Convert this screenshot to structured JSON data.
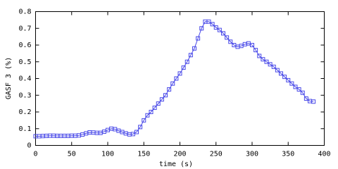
{
  "chart_data": {
    "type": "line",
    "xlabel": "time (s)",
    "ylabel": "GASF 3 (%)",
    "x": [
      0,
      5,
      10,
      15,
      20,
      25,
      30,
      35,
      40,
      45,
      50,
      55,
      60,
      65,
      70,
      75,
      80,
      85,
      90,
      95,
      100,
      105,
      110,
      115,
      120,
      125,
      130,
      135,
      140,
      145,
      150,
      155,
      160,
      165,
      170,
      175,
      180,
      185,
      190,
      195,
      200,
      205,
      210,
      215,
      220,
      225,
      230,
      235,
      240,
      245,
      250,
      255,
      260,
      265,
      270,
      275,
      280,
      285,
      290,
      295,
      300,
      305,
      310,
      315,
      320,
      325,
      330,
      335,
      340,
      345,
      350,
      355,
      360,
      365,
      370,
      375,
      380,
      385
    ],
    "series": [
      {
        "color": "#4848e8",
        "values": [
          0.055,
          0.055,
          0.056,
          0.057,
          0.058,
          0.058,
          0.057,
          0.057,
          0.057,
          0.057,
          0.058,
          0.058,
          0.06,
          0.065,
          0.072,
          0.078,
          0.077,
          0.075,
          0.075,
          0.082,
          0.092,
          0.1,
          0.097,
          0.088,
          0.08,
          0.072,
          0.066,
          0.068,
          0.08,
          0.11,
          0.15,
          0.18,
          0.2,
          0.225,
          0.25,
          0.275,
          0.3,
          0.335,
          0.37,
          0.4,
          0.43,
          0.465,
          0.5,
          0.54,
          0.58,
          0.64,
          0.7,
          0.74,
          0.74,
          0.725,
          0.705,
          0.69,
          0.67,
          0.645,
          0.62,
          0.6,
          0.59,
          0.595,
          0.605,
          0.61,
          0.6,
          0.57,
          0.535,
          0.515,
          0.5,
          0.485,
          0.47,
          0.45,
          0.43,
          0.41,
          0.39,
          0.37,
          0.35,
          0.335,
          0.315,
          0.28,
          0.265,
          0.262
        ]
      }
    ],
    "xlim": [
      0,
      400
    ],
    "xticks": [
      0,
      50,
      100,
      150,
      200,
      250,
      300,
      350,
      400
    ],
    "ylim": [
      0,
      0.8
    ],
    "yticks": [
      0,
      0.1,
      0.2,
      0.3,
      0.4,
      0.5,
      0.6,
      0.7,
      0.8
    ]
  }
}
